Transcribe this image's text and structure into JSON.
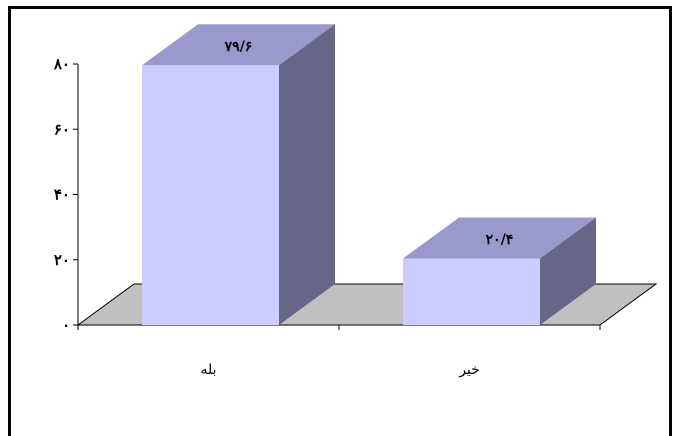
{
  "chart_data": {
    "type": "bar",
    "style": "3d",
    "categories": [
      "بله",
      "خیر"
    ],
    "values": [
      79.6,
      20.4
    ],
    "data_labels": [
      "۷۹/۶",
      "۲۰/۴"
    ],
    "ylim": [
      0,
      80
    ],
    "ticks": [
      0,
      20,
      40,
      60,
      80
    ],
    "tick_labels": [
      "۰",
      "۲۰",
      "۴۰",
      "۶۰",
      "۸۰"
    ],
    "grid": false,
    "legend": "none",
    "colors": {
      "bar_front": "#ccccff",
      "bar_top": "#9999cc",
      "bar_side": "#666688",
      "floor": "#c0c0c0",
      "axis": "#000000"
    }
  }
}
